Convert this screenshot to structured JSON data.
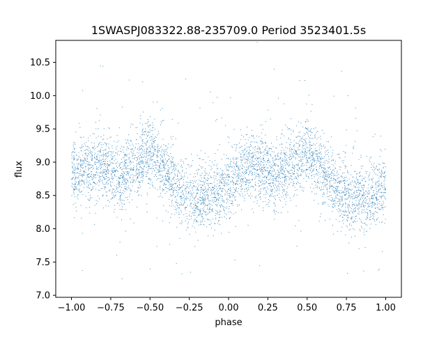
{
  "chart_data": {
    "type": "scatter",
    "title": "1SWASPJ083322.88-235709.0 Period 3523401.5s",
    "xlabel": "phase",
    "ylabel": "flux",
    "xlim": [
      -1.1,
      1.1
    ],
    "ylim": [
      6.97,
      10.83
    ],
    "x_ticks": [
      -1.0,
      -0.75,
      -0.5,
      -0.25,
      0.0,
      0.25,
      0.5,
      0.75,
      1.0
    ],
    "x_tick_labels": [
      "−1.00",
      "−0.75",
      "−0.50",
      "−0.25",
      "0.00",
      "0.25",
      "0.50",
      "0.75",
      "1.00"
    ],
    "y_ticks": [
      7.0,
      7.5,
      8.0,
      8.5,
      9.0,
      9.5,
      10.0,
      10.5
    ],
    "y_tick_labels": [
      "7.0",
      "7.5",
      "8.0",
      "8.5",
      "9.0",
      "9.5",
      "10.0",
      "10.5"
    ],
    "grid": false,
    "legend": "none",
    "marker_color": "#1f77b4",
    "series": [
      {
        "phase_range": [
          -1.0,
          1.0
        ],
        "folded_period_phase": 1.0,
        "approx_points": 5000,
        "mean_flux_profile": {
          "phase": [
            -1.0,
            -0.9,
            -0.8,
            -0.7,
            -0.6,
            -0.5,
            -0.4,
            -0.3,
            -0.2,
            -0.1,
            0.0,
            0.1,
            0.2,
            0.3,
            0.4,
            0.5,
            0.6,
            0.7,
            0.8,
            0.9,
            1.0
          ],
          "flux": [
            8.85,
            8.9,
            8.95,
            8.75,
            8.95,
            9.15,
            8.85,
            8.55,
            8.45,
            8.5,
            8.65,
            8.9,
            8.95,
            8.75,
            8.95,
            9.15,
            8.85,
            8.55,
            8.45,
            8.5,
            8.65
          ]
        },
        "flux_scatter": 0.25
      }
    ]
  }
}
